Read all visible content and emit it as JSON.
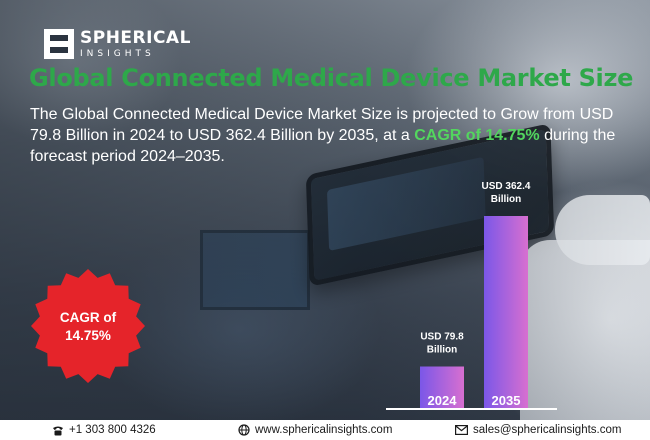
{
  "brand": {
    "line1": "SPHERICAL",
    "line2": "INSIGHTS",
    "logo_icon": "spherical-insights-logo-icon"
  },
  "title": "Global Connected Medical Device Market Size",
  "description": {
    "part1": "The Global Connected Medical Device Market Size is projected to Grow from USD 79.8 Billion in 2024 to USD 362.4 Billion by 2035, at a ",
    "cagr": "CAGR of 14.75%",
    "part2": " during the forecast period 2024–2035."
  },
  "badge": {
    "line1": "CAGR of",
    "line2": "14.75%",
    "color": "#e5242a"
  },
  "chart_data": {
    "type": "bar",
    "categories": [
      "2024",
      "2035"
    ],
    "values": [
      79.8,
      362.4
    ],
    "value_labels": [
      {
        "line1": "USD 79.8",
        "line2": "Billion"
      },
      {
        "line1": "USD 362.4",
        "line2": "Billion"
      }
    ],
    "unit": "USD Billion",
    "bar_gradient": [
      "#7b57e8",
      "#d76fd0"
    ]
  },
  "footer": {
    "phone": "+1 303 800 4326",
    "website": "www.sphericalinsights.com",
    "email": "sales@sphericalinsights.com",
    "phone_icon": "phone-icon",
    "website_icon": "globe-icon",
    "email_icon": "envelope-icon"
  },
  "colors": {
    "title": "#2ea84a",
    "cagr_highlight": "#53d65e",
    "text": "#ffffff"
  }
}
